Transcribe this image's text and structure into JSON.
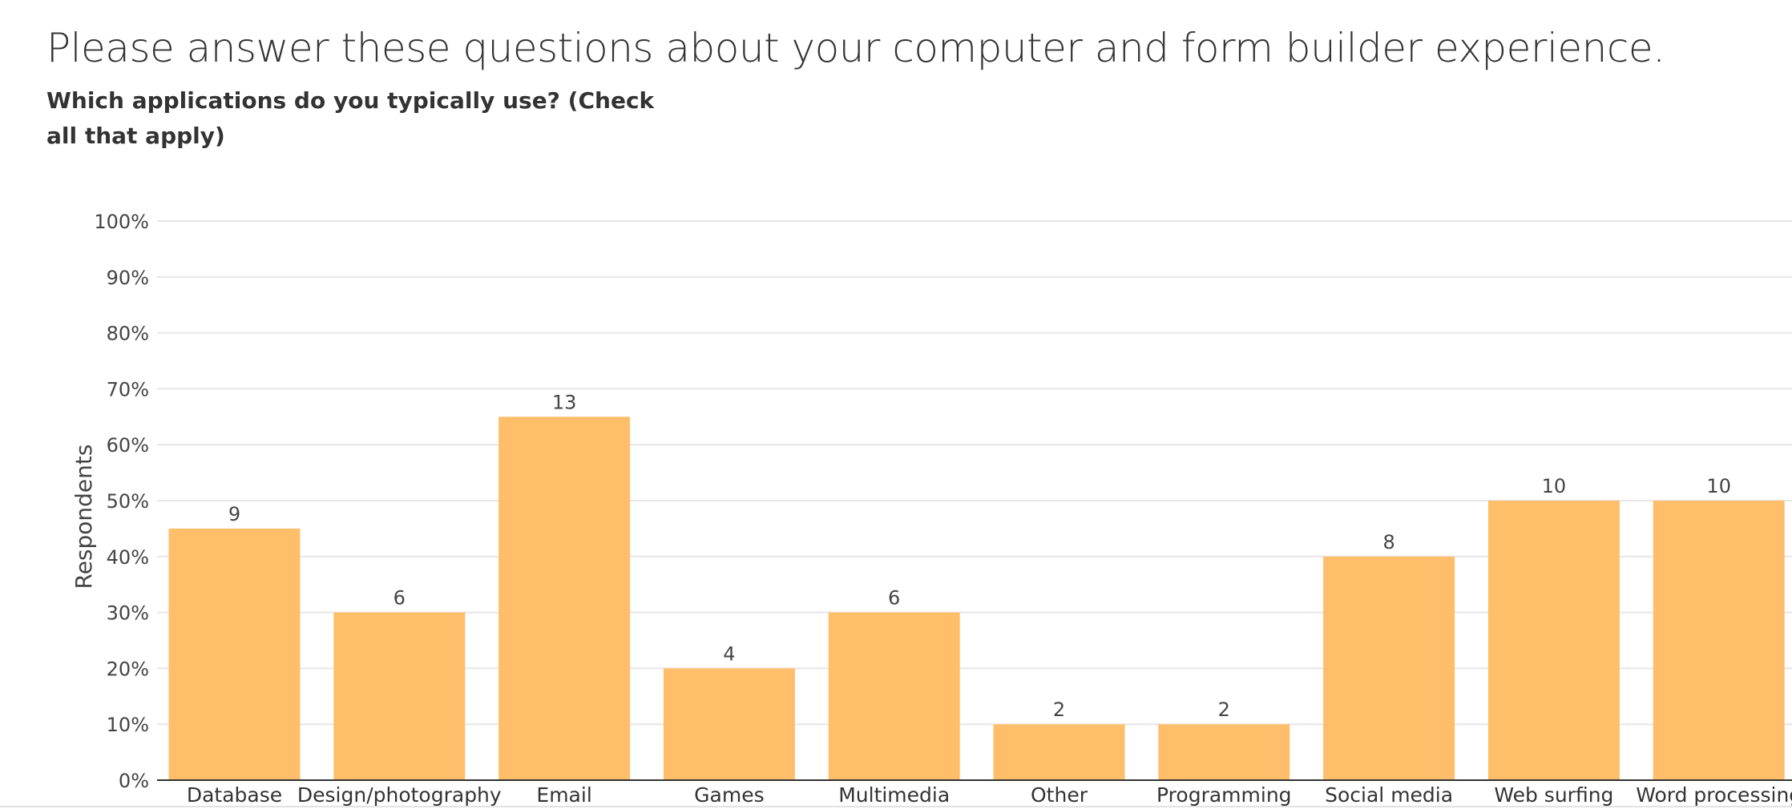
{
  "page": {
    "title": "Please answer these questions about your computer and form builder experience.",
    "question": "Which applications do you typically use? (Check all that apply)"
  },
  "chart_data": {
    "type": "bar",
    "title": "",
    "ylabel": "Respondents",
    "xlabel": "",
    "ylim": [
      0,
      100
    ],
    "yticks": [
      "0%",
      "10%",
      "20%",
      "30%",
      "40%",
      "50%",
      "60%",
      "70%",
      "80%",
      "90%",
      "100%"
    ],
    "grid": true,
    "bar_color": "#ffbe69",
    "categories": [
      "Database",
      "Design/photography",
      "Email",
      "Games",
      "Multimedia",
      "Other",
      "Programming",
      "Social media",
      "Web surfing",
      "Word processing"
    ],
    "series": [
      {
        "values": [
          45,
          30,
          65,
          20,
          30,
          10,
          10,
          40,
          50,
          50
        ],
        "counts": [
          "9",
          "6",
          "13",
          "4",
          "6",
          "2",
          "2",
          "8",
          "10",
          "10"
        ]
      }
    ]
  }
}
